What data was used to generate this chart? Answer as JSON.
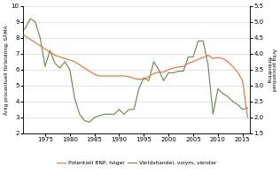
{
  "left_ylim": [
    2,
    10
  ],
  "right_ylim": [
    1.5,
    5.5
  ],
  "left_yticks": [
    2,
    3,
    4,
    5,
    6,
    7,
    8,
    9,
    10
  ],
  "right_yticks": [
    1.5,
    2.0,
    2.5,
    3.0,
    3.5,
    4.0,
    4.5,
    5.0,
    5.5
  ],
  "xticks": [
    1975,
    1980,
    1985,
    1990,
    1995,
    2000,
    2005,
    2010,
    2015
  ],
  "xlim": [
    1970.5,
    2016.5
  ],
  "color_orange": "#E8733A",
  "color_green": "#6B8E4E",
  "legend_orange": "Potentiell BNP, höger",
  "legend_green": "Världshandel, volym, vänster",
  "ylabel_left": "Årlig procentuell förändring, SÅMA",
  "ylabel_right": "Årlig procentuell\nförändring",
  "world_trade_years": [
    1970,
    1971,
    1972,
    1973,
    1974,
    1975,
    1976,
    1977,
    1978,
    1979,
    1980,
    1981,
    1982,
    1983,
    1984,
    1985,
    1986,
    1987,
    1988,
    1989,
    1990,
    1991,
    1992,
    1993,
    1994,
    1995,
    1996,
    1997,
    1998,
    1999,
    2000,
    2001,
    2002,
    2003,
    2004,
    2005,
    2006,
    2007,
    2008,
    2009,
    2010,
    2011,
    2012,
    2013,
    2014,
    2015,
    2016
  ],
  "world_trade_values": [
    8.3,
    8.6,
    9.2,
    9.0,
    8.0,
    6.2,
    7.2,
    6.4,
    6.1,
    6.5,
    6.0,
    4.2,
    3.2,
    2.8,
    2.7,
    3.0,
    3.1,
    3.2,
    3.2,
    3.2,
    3.5,
    3.2,
    3.5,
    3.5,
    4.8,
    5.5,
    5.3,
    6.5,
    6.0,
    5.3,
    5.8,
    5.8,
    5.9,
    5.9,
    6.8,
    6.8,
    7.8,
    7.8,
    6.3,
    3.2,
    4.8,
    4.5,
    4.3,
    4.0,
    3.8,
    3.5,
    3.6
  ],
  "bnp_years": [
    1970,
    1971,
    1972,
    1973,
    1974,
    1975,
    1976,
    1977,
    1978,
    1979,
    1980,
    1981,
    1982,
    1983,
    1984,
    1985,
    1986,
    1987,
    1988,
    1989,
    1990,
    1991,
    1992,
    1993,
    1994,
    1995,
    1996,
    1997,
    1998,
    1999,
    2000,
    2001,
    2002,
    2003,
    2004,
    2005,
    2006,
    2007,
    2008,
    2009,
    2010,
    2011,
    2012,
    2013,
    2014,
    2015,
    2016
  ],
  "bnp_values": [
    4.65,
    4.55,
    4.45,
    4.35,
    4.25,
    4.15,
    4.05,
    3.95,
    3.9,
    3.85,
    3.8,
    3.75,
    3.65,
    3.55,
    3.45,
    3.35,
    3.3,
    3.3,
    3.3,
    3.3,
    3.3,
    3.3,
    3.28,
    3.22,
    3.2,
    3.2,
    3.28,
    3.38,
    3.42,
    3.42,
    3.5,
    3.55,
    3.58,
    3.6,
    3.7,
    3.75,
    3.82,
    3.88,
    3.95,
    3.85,
    3.88,
    3.85,
    3.75,
    3.6,
    3.42,
    3.15,
    2.0
  ]
}
